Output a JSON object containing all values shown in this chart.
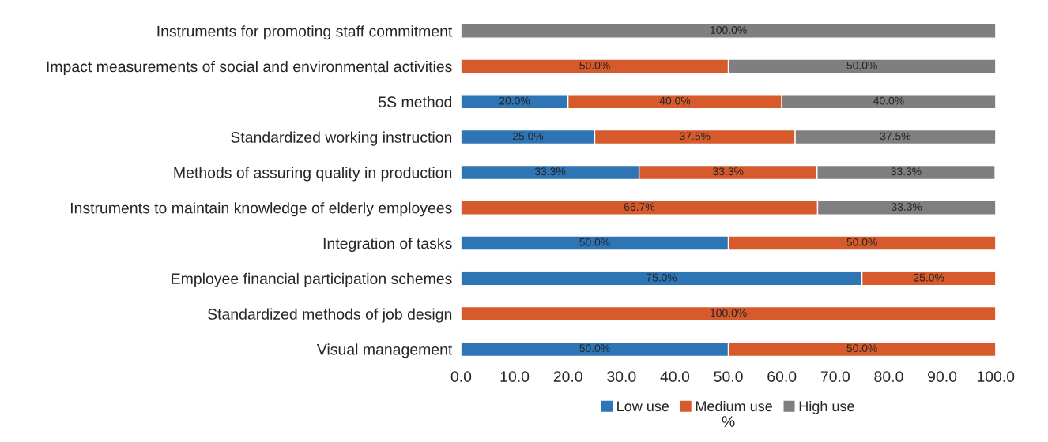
{
  "chart_data": {
    "type": "bar",
    "orientation": "horizontal",
    "stacked": true,
    "categories": [
      "Instruments for promoting staff commitment",
      "Impact measurements of social and environmental activities",
      "5S method",
      "Standardized working instruction",
      "Methods of assuring quality in production",
      "Instruments to maintain knowledge of elderly employees",
      "Integration of tasks",
      "Employee financial participation schemes",
      "Standardized methods of job design",
      "Visual management"
    ],
    "series": [
      {
        "name": "Low use",
        "color": "#2e75b6",
        "values": [
          null,
          null,
          20,
          25,
          33.3,
          null,
          50,
          75,
          null,
          50
        ],
        "value_labels": [
          null,
          null,
          "20.0%",
          "25.0%",
          "33.3%",
          null,
          "50.0%",
          "75.0%",
          null,
          "50.0%"
        ]
      },
      {
        "name": "Medium use",
        "color": "#d65a2c",
        "values": [
          null,
          50,
          40,
          37.5,
          33.3,
          66.7,
          50,
          25,
          100,
          50
        ],
        "value_labels": [
          null,
          "50.0%",
          "40.0%",
          "37.5%",
          "33.3%",
          "66.7%",
          "50.0%",
          "25.0%",
          "100.0%",
          "50.0%"
        ]
      },
      {
        "name": "High use",
        "color": "#7f7f7f",
        "values": [
          100,
          50,
          40,
          37.5,
          33.3,
          33.3,
          null,
          null,
          null,
          null
        ],
        "value_labels": [
          "100.0%",
          "50.0%",
          "40.0%",
          "37.5%",
          "33.3%",
          "33.3%",
          null,
          null,
          null,
          null
        ]
      }
    ],
    "xlim": [
      0,
      100
    ],
    "xticks": [
      {
        "value": 0,
        "label": "0.0"
      },
      {
        "value": 10,
        "label": "10.0"
      },
      {
        "value": 20,
        "label": "20.0"
      },
      {
        "value": 30,
        "label": "30.0"
      },
      {
        "value": 40,
        "label": "40.0"
      },
      {
        "value": 50,
        "label": "50.0"
      },
      {
        "value": 60,
        "label": "60.0"
      },
      {
        "value": 70,
        "label": "70.0"
      },
      {
        "value": 80,
        "label": "80.0"
      },
      {
        "value": 90,
        "label": "90.0"
      },
      {
        "value": 100,
        "label": "100.0"
      }
    ],
    "xlabel": "%",
    "legend": "bottom",
    "grid": false
  }
}
